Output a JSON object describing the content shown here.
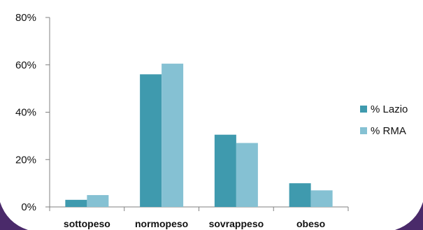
{
  "chart_data": {
    "type": "bar",
    "categories": [
      "sottopeso",
      "normopeso",
      "sovrappeso",
      "obeso"
    ],
    "series": [
      {
        "name": "% Lazio",
        "color": "#3f9aae",
        "values": [
          3,
          56,
          30.5,
          10
        ]
      },
      {
        "name": "% RMA",
        "color": "#85c1d3",
        "values": [
          5,
          60.5,
          27,
          7
        ]
      }
    ],
    "ylim": [
      0,
      80
    ],
    "yticks": [
      0,
      20,
      40,
      60,
      80
    ],
    "ytick_labels": [
      "0%",
      "20%",
      "40%",
      "60%",
      "80%"
    ],
    "title": "",
    "xlabel": "",
    "ylabel": "",
    "legend_position": "right",
    "grid": false
  },
  "colors": {
    "axis": "#808080",
    "corner_accent": "#4a2a6a"
  }
}
